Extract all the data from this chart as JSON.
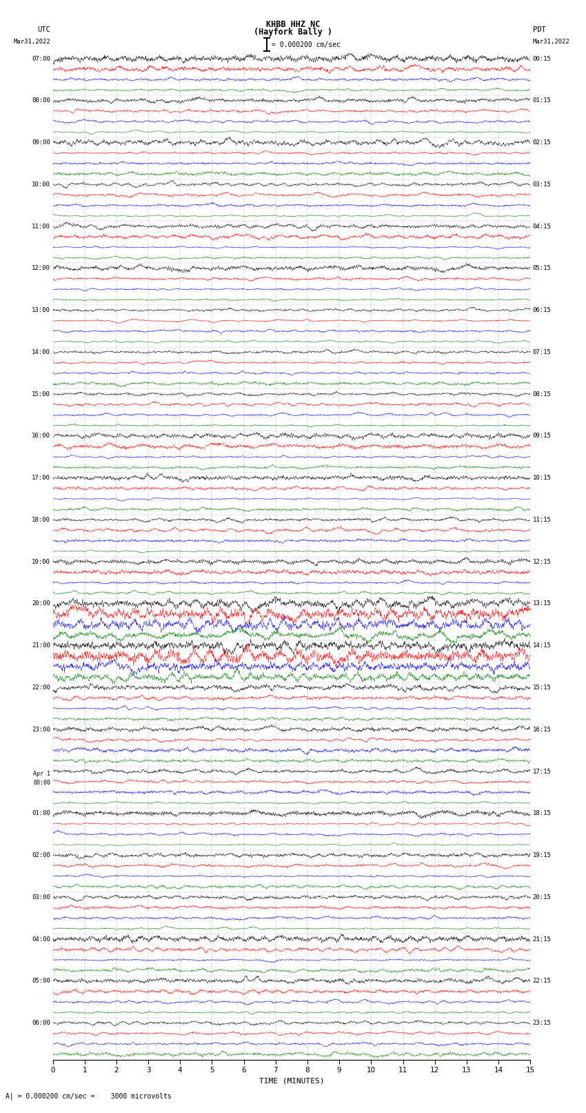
{
  "title_line1": "KHBB HHZ NC",
  "title_line2": "(Hayfork Bally )",
  "scale_text": "= 0.000200 cm/sec",
  "bottom_annotation": "A| = 0.000200 cm/sec =    3000 microvolts",
  "xlabel": "TIME (MINUTES)",
  "utc_label": "UTC",
  "pdt_label": "PDT",
  "date_left": "Mar31,2022",
  "date_right": "Mar31,2022",
  "left_times": [
    "07:00",
    "08:00",
    "09:00",
    "10:00",
    "11:00",
    "12:00",
    "13:00",
    "14:00",
    "15:00",
    "16:00",
    "17:00",
    "18:00",
    "19:00",
    "20:00",
    "21:00",
    "22:00",
    "23:00",
    "Apr 1",
    "00:00",
    "01:00",
    "02:00",
    "03:00",
    "04:00",
    "05:00",
    "06:00"
  ],
  "right_times": [
    "00:15",
    "01:15",
    "02:15",
    "03:15",
    "04:15",
    "05:15",
    "06:15",
    "07:15",
    "08:15",
    "09:15",
    "10:15",
    "11:15",
    "12:15",
    "13:15",
    "14:15",
    "15:15",
    "16:15",
    "17:15",
    "18:15",
    "19:15",
    "20:15",
    "21:15",
    "22:15",
    "23:15"
  ],
  "n_rows": 24,
  "n_traces_per_row": 4,
  "trace_colors": [
    "black",
    "red",
    "blue",
    "green"
  ],
  "xmin": 0,
  "xmax": 15,
  "xticks": [
    0,
    1,
    2,
    3,
    4,
    5,
    6,
    7,
    8,
    9,
    10,
    11,
    12,
    13,
    14,
    15
  ],
  "background_color": "white",
  "seed": 42,
  "special_rows": [
    19,
    20
  ],
  "apr1_row": 17
}
